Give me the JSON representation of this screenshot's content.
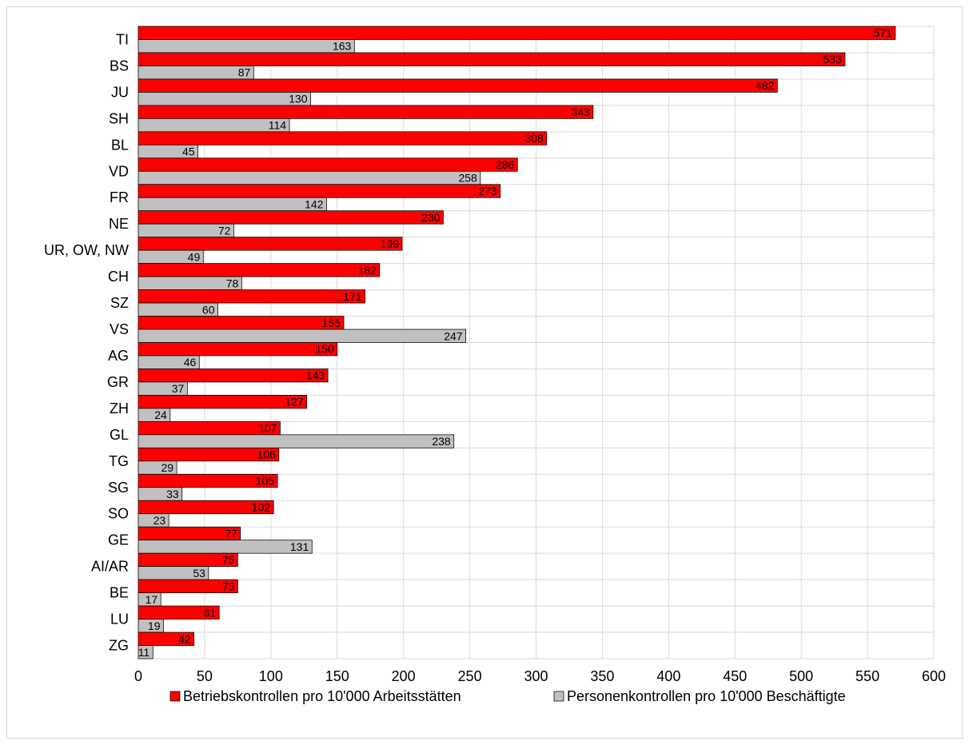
{
  "chart_data": {
    "type": "bar",
    "orientation": "horizontal",
    "categories": [
      "TI",
      "BS",
      "JU",
      "SH",
      "BL",
      "VD",
      "FR",
      "NE",
      "UR, OW, NW",
      "CH",
      "SZ",
      "VS",
      "AG",
      "GR",
      "ZH",
      "GL",
      "TG",
      "SG",
      "SO",
      "GE",
      "AI/AR",
      "BE",
      "LU",
      "ZG"
    ],
    "series": [
      {
        "name": "Betriebskontrollen pro 10'000 Arbeitsstätten",
        "color": "#ff0000",
        "values": [
          571,
          533,
          482,
          343,
          308,
          286,
          273,
          230,
          199,
          182,
          171,
          155,
          150,
          143,
          127,
          107,
          106,
          105,
          102,
          77,
          75,
          75,
          61,
          42
        ]
      },
      {
        "name": "Personenkontrollen pro 10'000 Beschäftigte",
        "color": "#c0c0c0",
        "values": [
          163,
          87,
          130,
          114,
          45,
          258,
          142,
          72,
          49,
          78,
          60,
          247,
          46,
          37,
          24,
          238,
          29,
          33,
          23,
          131,
          53,
          17,
          19,
          11
        ]
      }
    ],
    "xlim": [
      0,
      600
    ],
    "xticks": [
      0,
      50,
      100,
      150,
      200,
      250,
      300,
      350,
      400,
      450,
      500,
      550,
      600
    ],
    "grid": true,
    "legend_position": "bottom",
    "data_labels": true
  }
}
